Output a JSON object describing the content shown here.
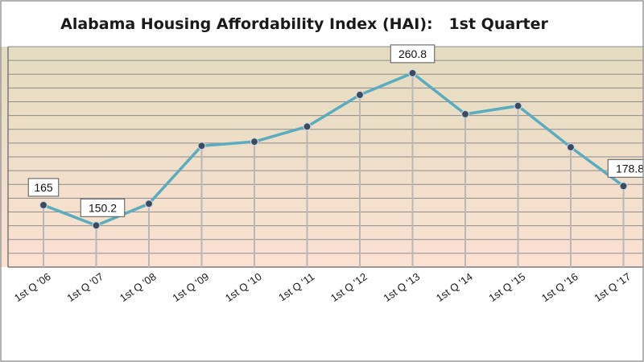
{
  "chart_data": {
    "type": "line",
    "title": "Alabama Housing Affordability Index (HAI):   1st Quarter",
    "categories": [
      "1st Q '06",
      "1st Q '07",
      "1st Q '08",
      "1st Q '09",
      "1st Q '10",
      "1st Q '11",
      "1st Q '12",
      "1st Q '13",
      "1st Q '14",
      "1st Q '15",
      "1st Q '16",
      "1st Q '17"
    ],
    "series": [
      {
        "values": [
          165,
          150.2,
          166,
          208,
          211,
          222,
          245,
          260.8,
          231,
          237,
          207,
          178.8
        ],
        "color": "#5aacbf"
      }
    ],
    "data_labels": [
      {
        "index": 0,
        "text": "165"
      },
      {
        "index": 1,
        "text": "150.2"
      },
      {
        "index": 7,
        "text": "260.8"
      },
      {
        "index": 11,
        "text": "178.8"
      }
    ],
    "ylim": [
      120,
      280
    ],
    "grid": true,
    "legend": "none",
    "colors": {
      "plot_top": "#e4dcc0",
      "plot_bottom": "#fbe1d2",
      "gridline": "#8c8c8c",
      "drop_line": "#b8b8b8",
      "marker": "#3c4a60"
    }
  }
}
